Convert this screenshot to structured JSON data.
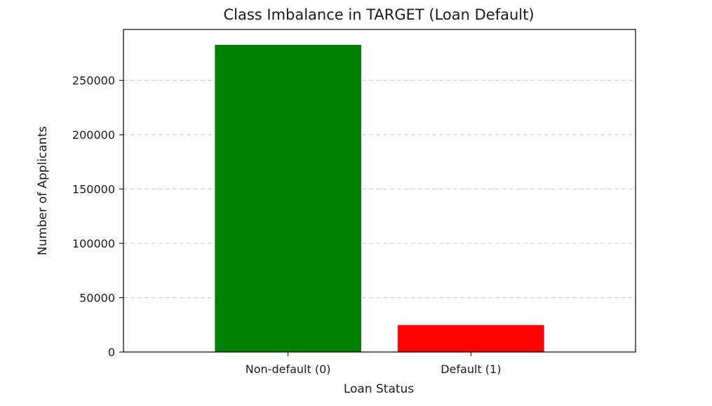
{
  "chart_data": {
    "type": "bar",
    "title": "Class Imbalance in TARGET (Loan Default)",
    "xlabel": "Loan Status",
    "ylabel": "Number of Applicants",
    "categories": [
      "Non-default (0)",
      "Default (1)"
    ],
    "values": [
      282686,
      24825
    ],
    "colors": [
      "#008000",
      "#ff0000"
    ],
    "ylim": [
      0,
      296860
    ],
    "yticks": [
      0,
      50000,
      100000,
      150000,
      200000,
      250000
    ],
    "grid": "y-dashed",
    "legend": "none"
  }
}
